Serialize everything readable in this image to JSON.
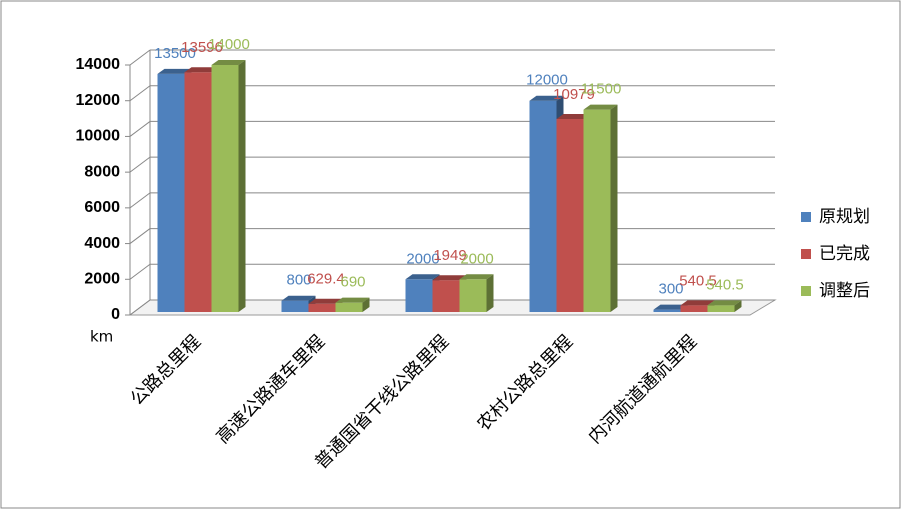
{
  "chart_data": {
    "type": "bar3d",
    "categories": [
      "公路总里程",
      "高速公路通车里程",
      "普通国省干线公路里程",
      "农村公路总里程",
      "内河航道通航里程"
    ],
    "series": [
      {
        "name": "原规划",
        "color": "#4f81bd",
        "values": [
          13500,
          800,
          2000,
          12000,
          300
        ]
      },
      {
        "name": "已完成",
        "color": "#c0504d",
        "values": [
          13596,
          629.4,
          1949,
          10979,
          540.5
        ]
      },
      {
        "name": "调整后",
        "color": "#9bbb59",
        "values": [
          14000,
          690,
          2000,
          11500,
          540.5
        ]
      }
    ],
    "y_label": "km",
    "ylim": [
      0,
      14000
    ],
    "yticks": [
      0,
      2000,
      4000,
      6000,
      8000,
      10000,
      12000,
      14000
    ],
    "grid": true,
    "legend": "right"
  }
}
